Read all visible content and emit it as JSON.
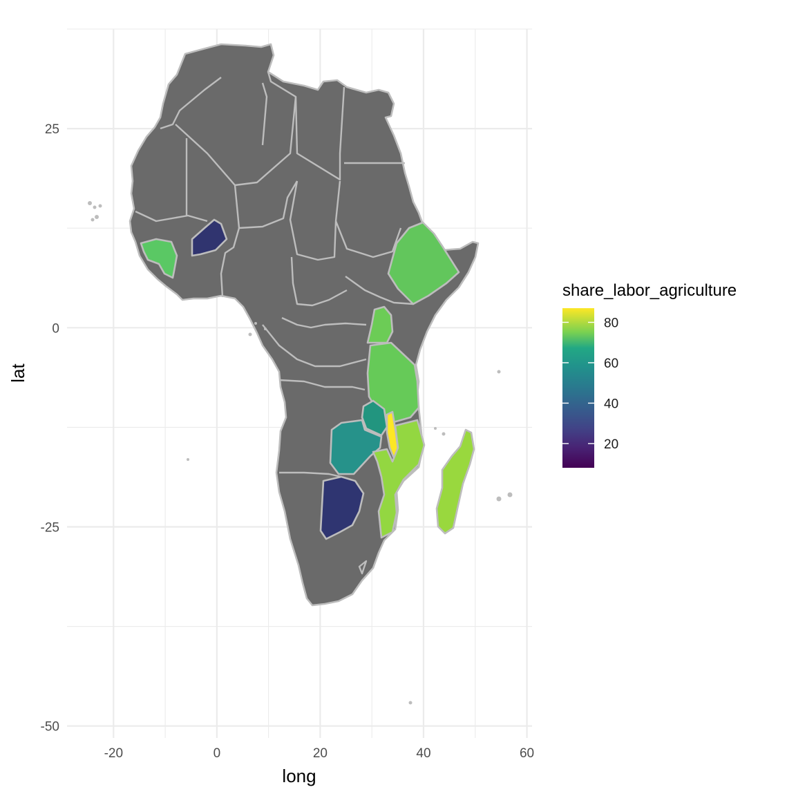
{
  "chart_data": {
    "type": "map",
    "title": "",
    "xlabel": "long",
    "ylabel": "lat",
    "x_ticks": [
      -20,
      0,
      20,
      40,
      60
    ],
    "y_ticks": [
      25,
      0,
      -25,
      -50
    ],
    "xlim": [
      -29,
      61
    ],
    "ylim": [
      -51.5,
      37.5
    ],
    "grid": true,
    "legend": {
      "title": "share_labor_agriculture",
      "position": "right",
      "colorscale": "viridis",
      "range": [
        8,
        87
      ],
      "ticks": [
        80,
        60,
        40,
        20
      ]
    },
    "base_fill": "#6a6a6a",
    "border_color": "#bdbdbd",
    "regions": [
      {
        "value": 65,
        "color": "#5ac864"
      },
      {
        "value": 21,
        "color": "#30346f"
      },
      {
        "value": 66,
        "color": "#62c65c"
      },
      {
        "value": 68,
        "color": "#6ccc56"
      },
      {
        "value": 67,
        "color": "#66ca58"
      },
      {
        "value": 51,
        "color": "#22957f"
      },
      {
        "value": 49,
        "color": "#26928a"
      },
      {
        "value": 86,
        "color": "#fde725"
      },
      {
        "value": 75,
        "color": "#93d741"
      },
      {
        "value": 78,
        "color": "#99d83e"
      },
      {
        "value": 21,
        "color": "#2f3571"
      },
      {
        "value": 77,
        "color": "#96d83f"
      }
    ]
  }
}
